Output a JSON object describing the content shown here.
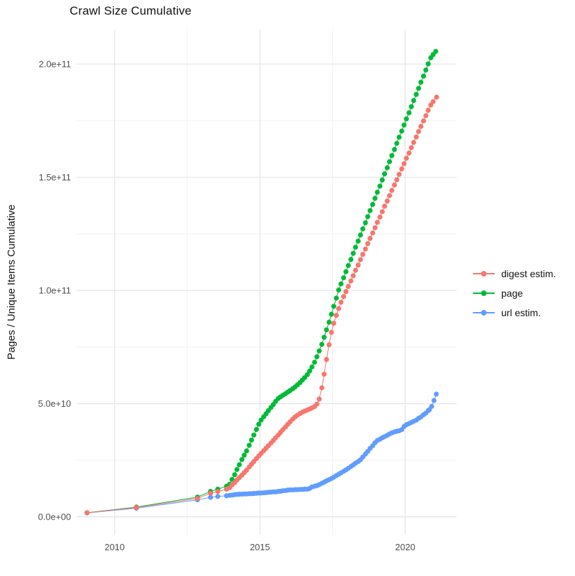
{
  "chart_data": {
    "type": "line",
    "title": "Crawl Size Cumulative",
    "xlabel": "",
    "ylabel": "Pages / Unique Items Cumulative",
    "legend_position": "right",
    "grid": true,
    "value_scale": 1000000000,
    "value_scale_note": "point values are in billions (1e9) of pages / unique items",
    "xlim": [
      2008.69,
      2021.77
    ],
    "ylim": [
      -8,
      215.4
    ],
    "x_ticks": [
      {
        "v": 2010,
        "label": "2010"
      },
      {
        "v": 2015,
        "label": "2015"
      },
      {
        "v": 2020,
        "label": "2020"
      }
    ],
    "y_ticks": [
      {
        "v": 0,
        "label": "0.0e+00"
      },
      {
        "v": 50,
        "label": "5.0e+10"
      },
      {
        "v": 100,
        "label": "1.0e+11"
      },
      {
        "v": 150,
        "label": "1.5e+11"
      },
      {
        "v": 200,
        "label": "2.0e+11"
      }
    ],
    "x_minor": [
      2012.5,
      2017.5
    ],
    "y_minor": [
      25,
      75,
      125,
      175
    ],
    "series": [
      {
        "name": "digest estim.",
        "color": "#F8766D",
        "points": [
          [
            2009.05,
            1.8
          ],
          [
            2010.75,
            4.1
          ],
          [
            2012.85,
            8.1
          ],
          [
            2013.3,
            10.4
          ],
          [
            2013.55,
            11.2
          ],
          [
            2013.85,
            12.2
          ],
          [
            2013.96,
            12.9
          ],
          [
            2014.04,
            14.1
          ],
          [
            2014.13,
            15.1
          ],
          [
            2014.21,
            16.3
          ],
          [
            2014.29,
            17.3
          ],
          [
            2014.38,
            18.4
          ],
          [
            2014.46,
            19.5
          ],
          [
            2014.54,
            20.6
          ],
          [
            2014.63,
            22.0
          ],
          [
            2014.71,
            23.2
          ],
          [
            2014.79,
            24.4
          ],
          [
            2014.88,
            25.7
          ],
          [
            2014.96,
            26.9
          ],
          [
            2015.04,
            28.0
          ],
          [
            2015.13,
            29.2
          ],
          [
            2015.21,
            30.3
          ],
          [
            2015.29,
            31.4
          ],
          [
            2015.38,
            32.6
          ],
          [
            2015.46,
            33.7
          ],
          [
            2015.54,
            34.9
          ],
          [
            2015.63,
            36.1
          ],
          [
            2015.71,
            37.3
          ],
          [
            2015.79,
            38.5
          ],
          [
            2015.88,
            39.7
          ],
          [
            2015.96,
            40.9
          ],
          [
            2016.04,
            42.0
          ],
          [
            2016.13,
            43.2
          ],
          [
            2016.21,
            44.1
          ],
          [
            2016.29,
            44.9
          ],
          [
            2016.38,
            45.6
          ],
          [
            2016.46,
            46.2
          ],
          [
            2016.54,
            46.7
          ],
          [
            2016.63,
            47.2
          ],
          [
            2016.71,
            47.6
          ],
          [
            2016.79,
            48.1
          ],
          [
            2016.88,
            48.7
          ],
          [
            2016.96,
            49.8
          ],
          [
            2017.04,
            52.0
          ],
          [
            2017.13,
            57.0
          ],
          [
            2017.21,
            63.0
          ],
          [
            2017.29,
            69.5
          ],
          [
            2017.38,
            76.0
          ],
          [
            2017.46,
            81.5
          ],
          [
            2017.54,
            85.5
          ],
          [
            2017.63,
            89.0
          ],
          [
            2017.71,
            92.0
          ],
          [
            2017.79,
            94.8
          ],
          [
            2017.88,
            97.3
          ],
          [
            2017.96,
            99.5
          ],
          [
            2018.04,
            101.8
          ],
          [
            2018.13,
            104.2
          ],
          [
            2018.21,
            106.5
          ],
          [
            2018.29,
            108.9
          ],
          [
            2018.38,
            111.2
          ],
          [
            2018.46,
            113.6
          ],
          [
            2018.54,
            115.9
          ],
          [
            2018.63,
            118.3
          ],
          [
            2018.71,
            120.7
          ],
          [
            2018.79,
            123.0
          ],
          [
            2018.88,
            125.4
          ],
          [
            2018.96,
            127.7
          ],
          [
            2019.04,
            130.1
          ],
          [
            2019.13,
            132.4
          ],
          [
            2019.21,
            134.8
          ],
          [
            2019.29,
            137.2
          ],
          [
            2019.38,
            139.5
          ],
          [
            2019.46,
            141.9
          ],
          [
            2019.54,
            144.2
          ],
          [
            2019.63,
            146.6
          ],
          [
            2019.71,
            148.9
          ],
          [
            2019.79,
            151.3
          ],
          [
            2019.88,
            153.7
          ],
          [
            2019.96,
            156.0
          ],
          [
            2020.04,
            158.4
          ],
          [
            2020.13,
            160.7
          ],
          [
            2020.21,
            163.1
          ],
          [
            2020.29,
            165.4
          ],
          [
            2020.38,
            167.8
          ],
          [
            2020.46,
            170.2
          ],
          [
            2020.54,
            172.5
          ],
          [
            2020.63,
            174.9
          ],
          [
            2020.71,
            177.2
          ],
          [
            2020.79,
            179.6
          ],
          [
            2020.88,
            181.9
          ],
          [
            2020.96,
            183.4
          ],
          [
            2021.08,
            185.4
          ]
        ]
      },
      {
        "name": "page",
        "color": "#00BA38",
        "points": [
          [
            2009.05,
            1.8
          ],
          [
            2010.75,
            4.3
          ],
          [
            2012.85,
            8.7
          ],
          [
            2013.3,
            11.2
          ],
          [
            2013.55,
            12.2
          ],
          [
            2013.85,
            13.5
          ],
          [
            2013.96,
            14.4
          ],
          [
            2014.04,
            16.5
          ],
          [
            2014.13,
            18.6
          ],
          [
            2014.21,
            20.9
          ],
          [
            2014.29,
            23.0
          ],
          [
            2014.38,
            25.3
          ],
          [
            2014.46,
            27.2
          ],
          [
            2014.54,
            29.1
          ],
          [
            2014.63,
            31.6
          ],
          [
            2014.71,
            33.9
          ],
          [
            2014.79,
            36.1
          ],
          [
            2014.88,
            38.6
          ],
          [
            2014.96,
            40.9
          ],
          [
            2015.04,
            42.7
          ],
          [
            2015.13,
            44.2
          ],
          [
            2015.21,
            45.5
          ],
          [
            2015.29,
            46.9
          ],
          [
            2015.38,
            48.3
          ],
          [
            2015.46,
            49.6
          ],
          [
            2015.54,
            51.0
          ],
          [
            2015.63,
            52.3
          ],
          [
            2015.71,
            53.0
          ],
          [
            2015.79,
            53.7
          ],
          [
            2015.88,
            54.4
          ],
          [
            2015.96,
            55.1
          ],
          [
            2016.04,
            55.8
          ],
          [
            2016.13,
            56.6
          ],
          [
            2016.21,
            57.4
          ],
          [
            2016.29,
            58.3
          ],
          [
            2016.38,
            59.3
          ],
          [
            2016.46,
            60.4
          ],
          [
            2016.54,
            61.5
          ],
          [
            2016.63,
            62.8
          ],
          [
            2016.71,
            64.4
          ],
          [
            2016.79,
            66.2
          ],
          [
            2016.88,
            68.3
          ],
          [
            2016.96,
            70.7
          ],
          [
            2017.04,
            73.3
          ],
          [
            2017.13,
            76.2
          ],
          [
            2017.21,
            79.3
          ],
          [
            2017.29,
            82.6
          ],
          [
            2017.38,
            86.0
          ],
          [
            2017.46,
            89.5
          ],
          [
            2017.54,
            93.0
          ],
          [
            2017.63,
            96.6
          ],
          [
            2017.71,
            100.2
          ],
          [
            2017.79,
            102.9
          ],
          [
            2017.88,
            105.6
          ],
          [
            2017.96,
            108.3
          ],
          [
            2018.04,
            111.0
          ],
          [
            2018.13,
            113.7
          ],
          [
            2018.21,
            116.4
          ],
          [
            2018.29,
            119.1
          ],
          [
            2018.38,
            121.8
          ],
          [
            2018.46,
            124.5
          ],
          [
            2018.54,
            127.2
          ],
          [
            2018.63,
            129.9
          ],
          [
            2018.71,
            132.6
          ],
          [
            2018.79,
            135.3
          ],
          [
            2018.88,
            138.0
          ],
          [
            2018.96,
            140.7
          ],
          [
            2019.04,
            143.4
          ],
          [
            2019.13,
            146.1
          ],
          [
            2019.21,
            148.8
          ],
          [
            2019.29,
            151.5
          ],
          [
            2019.38,
            154.2
          ],
          [
            2019.46,
            156.9
          ],
          [
            2019.54,
            159.6
          ],
          [
            2019.63,
            162.3
          ],
          [
            2019.71,
            165.0
          ],
          [
            2019.79,
            167.7
          ],
          [
            2019.88,
            170.4
          ],
          [
            2019.96,
            173.1
          ],
          [
            2020.04,
            175.8
          ],
          [
            2020.13,
            178.5
          ],
          [
            2020.21,
            181.2
          ],
          [
            2020.29,
            183.9
          ],
          [
            2020.38,
            186.6
          ],
          [
            2020.46,
            189.3
          ],
          [
            2020.54,
            192.0
          ],
          [
            2020.63,
            194.7
          ],
          [
            2020.71,
            197.4
          ],
          [
            2020.79,
            200.1
          ],
          [
            2020.88,
            202.8
          ],
          [
            2020.96,
            204.2
          ],
          [
            2021.05,
            205.6
          ]
        ]
      },
      {
        "name": "url estim.",
        "color": "#619CFF",
        "points": [
          [
            2009.05,
            1.7
          ],
          [
            2010.75,
            3.8
          ],
          [
            2012.85,
            7.5
          ],
          [
            2013.3,
            8.6
          ],
          [
            2013.55,
            9.0
          ],
          [
            2013.85,
            9.3
          ],
          [
            2013.96,
            9.5
          ],
          [
            2014.04,
            9.6
          ],
          [
            2014.13,
            9.8
          ],
          [
            2014.21,
            9.9
          ],
          [
            2014.29,
            10.0
          ],
          [
            2014.38,
            10.0
          ],
          [
            2014.46,
            10.1
          ],
          [
            2014.54,
            10.1
          ],
          [
            2014.63,
            10.2
          ],
          [
            2014.71,
            10.2
          ],
          [
            2014.79,
            10.3
          ],
          [
            2014.88,
            10.4
          ],
          [
            2014.96,
            10.5
          ],
          [
            2015.04,
            10.5
          ],
          [
            2015.13,
            10.6
          ],
          [
            2015.21,
            10.7
          ],
          [
            2015.29,
            10.8
          ],
          [
            2015.38,
            10.9
          ],
          [
            2015.46,
            11.0
          ],
          [
            2015.54,
            11.0
          ],
          [
            2015.63,
            11.2
          ],
          [
            2015.71,
            11.3
          ],
          [
            2015.79,
            11.5
          ],
          [
            2015.88,
            11.6
          ],
          [
            2015.96,
            11.8
          ],
          [
            2016.04,
            11.9
          ],
          [
            2016.13,
            11.9
          ],
          [
            2016.21,
            12.0
          ],
          [
            2016.29,
            12.0
          ],
          [
            2016.38,
            12.1
          ],
          [
            2016.46,
            12.1
          ],
          [
            2016.54,
            12.2
          ],
          [
            2016.63,
            12.2
          ],
          [
            2016.71,
            12.5
          ],
          [
            2016.79,
            13.2
          ],
          [
            2016.88,
            13.5
          ],
          [
            2016.96,
            13.8
          ],
          [
            2017.04,
            14.2
          ],
          [
            2017.13,
            14.8
          ],
          [
            2017.21,
            15.3
          ],
          [
            2017.29,
            15.9
          ],
          [
            2017.38,
            16.4
          ],
          [
            2017.46,
            16.9
          ],
          [
            2017.54,
            17.5
          ],
          [
            2017.63,
            18.2
          ],
          [
            2017.71,
            18.8
          ],
          [
            2017.79,
            19.4
          ],
          [
            2017.88,
            20.1
          ],
          [
            2017.96,
            20.7
          ],
          [
            2018.04,
            21.4
          ],
          [
            2018.13,
            22.2
          ],
          [
            2018.21,
            22.9
          ],
          [
            2018.29,
            23.7
          ],
          [
            2018.38,
            24.4
          ],
          [
            2018.46,
            25.2
          ],
          [
            2018.54,
            26.4
          ],
          [
            2018.63,
            27.7
          ],
          [
            2018.71,
            28.9
          ],
          [
            2018.79,
            30.2
          ],
          [
            2018.88,
            31.4
          ],
          [
            2018.96,
            32.7
          ],
          [
            2019.04,
            33.7
          ],
          [
            2019.13,
            34.3
          ],
          [
            2019.21,
            34.9
          ],
          [
            2019.29,
            35.4
          ],
          [
            2019.38,
            36.0
          ],
          [
            2019.46,
            36.6
          ],
          [
            2019.54,
            37.1
          ],
          [
            2019.63,
            37.5
          ],
          [
            2019.71,
            37.8
          ],
          [
            2019.79,
            38.0
          ],
          [
            2019.88,
            38.5
          ],
          [
            2019.96,
            39.9
          ],
          [
            2020.04,
            40.7
          ],
          [
            2020.13,
            41.2
          ],
          [
            2020.21,
            41.7
          ],
          [
            2020.29,
            42.2
          ],
          [
            2020.38,
            42.7
          ],
          [
            2020.46,
            43.5
          ],
          [
            2020.54,
            44.1
          ],
          [
            2020.63,
            45.1
          ],
          [
            2020.71,
            45.8
          ],
          [
            2020.79,
            46.9
          ],
          [
            2020.83,
            47.3
          ],
          [
            2020.91,
            48.8
          ],
          [
            2020.99,
            51.4
          ],
          [
            2021.07,
            54.2
          ]
        ]
      }
    ],
    "style": {
      "grid_major_color": "#E7E7E7",
      "grid_minor_color": "#F0F0F0",
      "axis_text_color": "#4D4D4D",
      "title_color": "#111111",
      "background": "#FFFFFF"
    }
  }
}
